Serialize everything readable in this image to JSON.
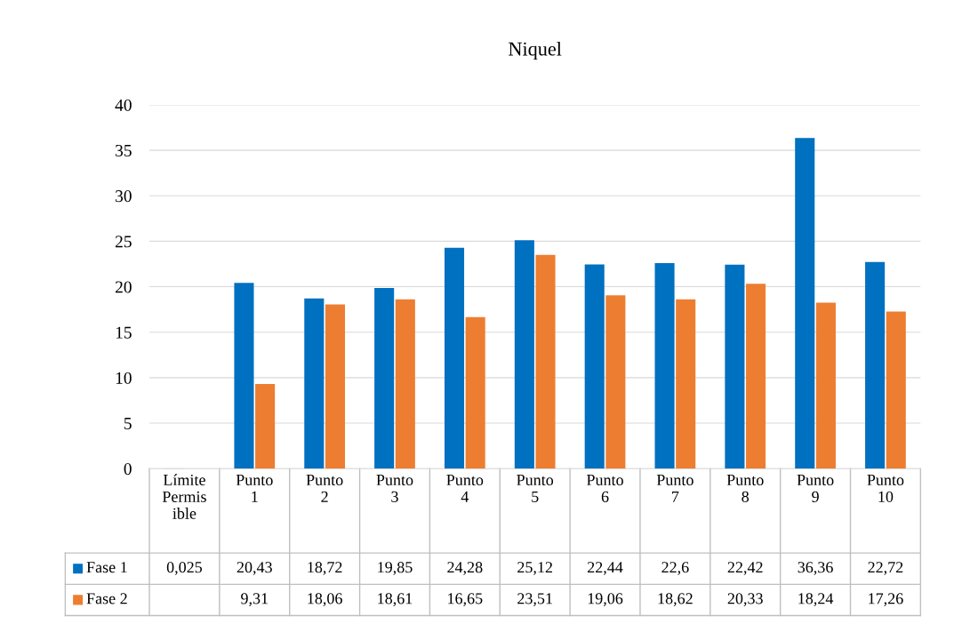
{
  "chart_data": {
    "type": "bar",
    "title": "Niquel",
    "categories": [
      "Límite Permisible",
      "Punto 1",
      "Punto 2",
      "Punto 3",
      "Punto 4",
      "Punto 5",
      "Punto 6",
      "Punto 7",
      "Punto 8",
      "Punto 9",
      "Punto 10"
    ],
    "series": [
      {
        "name": "Fase 1",
        "color": "#0070c0",
        "colors": [
          "#4cb848",
          "#0070c0",
          "#0070c0",
          "#0070c0",
          "#0070c0",
          "#0070c0",
          "#0070c0",
          "#0070c0",
          "#0070c0",
          "#0070c0",
          "#0070c0"
        ],
        "values": [
          0.025,
          20.43,
          18.72,
          19.85,
          24.28,
          25.12,
          22.44,
          22.6,
          22.42,
          36.36,
          22.72
        ],
        "value_labels": [
          "0,025",
          "20,43",
          "18,72",
          "19,85",
          "24,28",
          "25,12",
          "22,44",
          "22,6",
          "22,42",
          "36,36",
          "22,72"
        ]
      },
      {
        "name": "Fase 2",
        "color": "#ed7d31",
        "values": [
          null,
          9.31,
          18.06,
          18.61,
          16.65,
          23.51,
          19.06,
          18.62,
          20.33,
          18.24,
          17.26
        ],
        "value_labels": [
          null,
          "9,31",
          "18,06",
          "18,61",
          "16,65",
          "23,51",
          "19,06",
          "18,62",
          "20,33",
          "18,24",
          "17,26"
        ]
      }
    ],
    "ylim": [
      0,
      40
    ],
    "yticks": [
      0,
      5,
      10,
      15,
      20,
      25,
      30,
      35,
      40
    ],
    "grid": "y",
    "legend": "bottom"
  }
}
